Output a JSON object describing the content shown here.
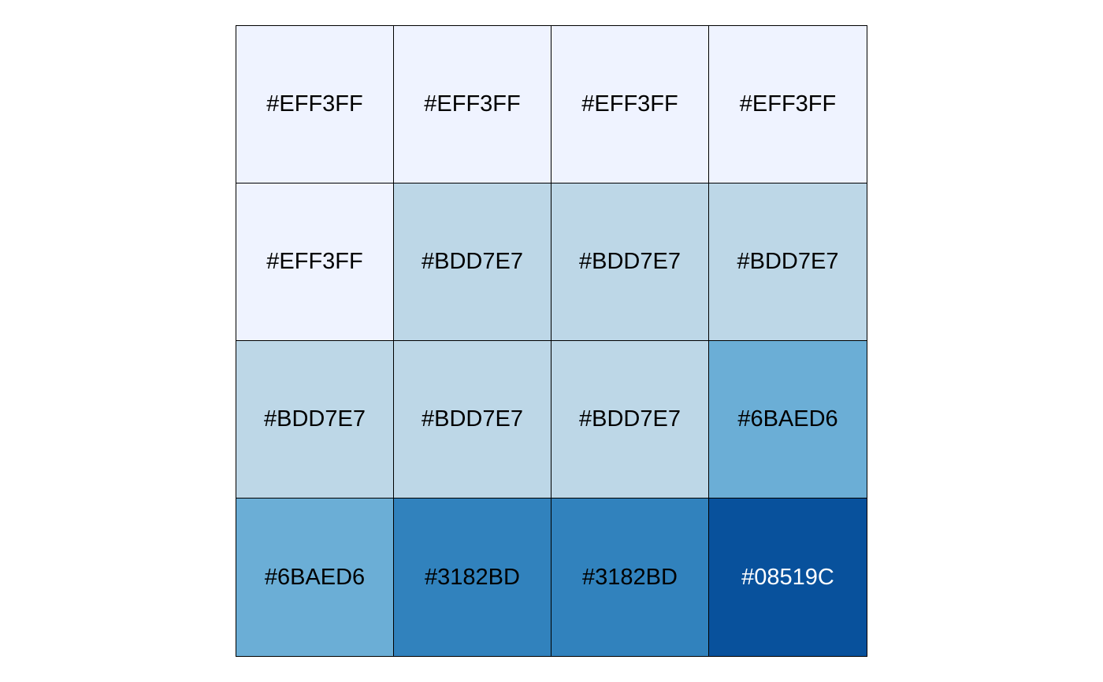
{
  "chart_data": {
    "type": "heatmap",
    "rows": 4,
    "cols": 4,
    "cells": [
      [
        {
          "label": "#EFF3FF",
          "fill": "#EFF3FF",
          "text_color": "#000000"
        },
        {
          "label": "#EFF3FF",
          "fill": "#EFF3FF",
          "text_color": "#000000"
        },
        {
          "label": "#EFF3FF",
          "fill": "#EFF3FF",
          "text_color": "#000000"
        },
        {
          "label": "#EFF3FF",
          "fill": "#EFF3FF",
          "text_color": "#000000"
        }
      ],
      [
        {
          "label": "#EFF3FF",
          "fill": "#EFF3FF",
          "text_color": "#000000"
        },
        {
          "label": "#BDD7E7",
          "fill": "#BDD7E7",
          "text_color": "#000000"
        },
        {
          "label": "#BDD7E7",
          "fill": "#BDD7E7",
          "text_color": "#000000"
        },
        {
          "label": "#BDD7E7",
          "fill": "#BDD7E7",
          "text_color": "#000000"
        }
      ],
      [
        {
          "label": "#BDD7E7",
          "fill": "#BDD7E7",
          "text_color": "#000000"
        },
        {
          "label": "#BDD7E7",
          "fill": "#BDD7E7",
          "text_color": "#000000"
        },
        {
          "label": "#BDD7E7",
          "fill": "#BDD7E7",
          "text_color": "#000000"
        },
        {
          "label": "#6BAED6",
          "fill": "#6BAED6",
          "text_color": "#000000"
        }
      ],
      [
        {
          "label": "#6BAED6",
          "fill": "#6BAED6",
          "text_color": "#000000"
        },
        {
          "label": "#3182BD",
          "fill": "#3182BD",
          "text_color": "#000000"
        },
        {
          "label": "#3182BD",
          "fill": "#3182BD",
          "text_color": "#000000"
        },
        {
          "label": "#08519C",
          "fill": "#08519C",
          "text_color": "#FFFFFF"
        }
      ]
    ],
    "title": "",
    "xlabel": "",
    "ylabel": "",
    "grid": true,
    "legend": "none"
  }
}
